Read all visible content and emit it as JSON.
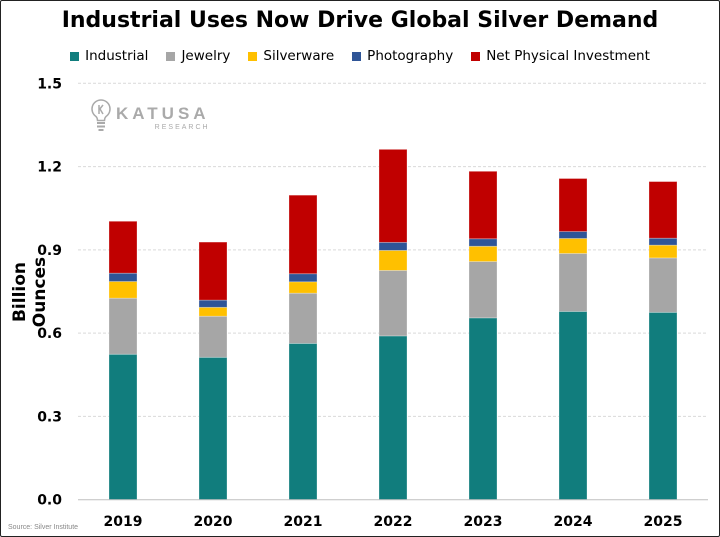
{
  "chart_data": {
    "type": "bar",
    "stacked": true,
    "title": "Industrial Uses Now Drive Global Silver Demand",
    "ylabel": "Billion Ounces",
    "xlabel": "",
    "ylim": [
      0,
      1.5
    ],
    "yticks": [
      "0.0",
      "0.3",
      "0.6",
      "0.9",
      "1.2",
      "1.5"
    ],
    "grid": true,
    "legend_position": "top",
    "categories": [
      "2019",
      "2020",
      "2021",
      "2022",
      "2023",
      "2024",
      "2025"
    ],
    "series": [
      {
        "name": "Industrial",
        "color": "#117D7D",
        "values": [
          0.524,
          0.513,
          0.563,
          0.59,
          0.655,
          0.678,
          0.675
        ]
      },
      {
        "name": "Jewelry",
        "color": "#A6A6A6",
        "values": [
          0.202,
          0.148,
          0.181,
          0.236,
          0.203,
          0.209,
          0.196
        ]
      },
      {
        "name": "Silverware",
        "color": "#FFC000",
        "values": [
          0.06,
          0.032,
          0.041,
          0.072,
          0.055,
          0.054,
          0.046
        ]
      },
      {
        "name": "Photography",
        "color": "#2F5597",
        "values": [
          0.03,
          0.026,
          0.029,
          0.029,
          0.027,
          0.025,
          0.025
        ]
      },
      {
        "name": "Net Physical Investment",
        "color": "#C00000",
        "values": [
          0.187,
          0.209,
          0.283,
          0.335,
          0.243,
          0.191,
          0.204
        ]
      }
    ],
    "source": "Source: Silver Institute"
  },
  "logo": {
    "name": "KATUSA",
    "sub": "RESEARCH"
  }
}
